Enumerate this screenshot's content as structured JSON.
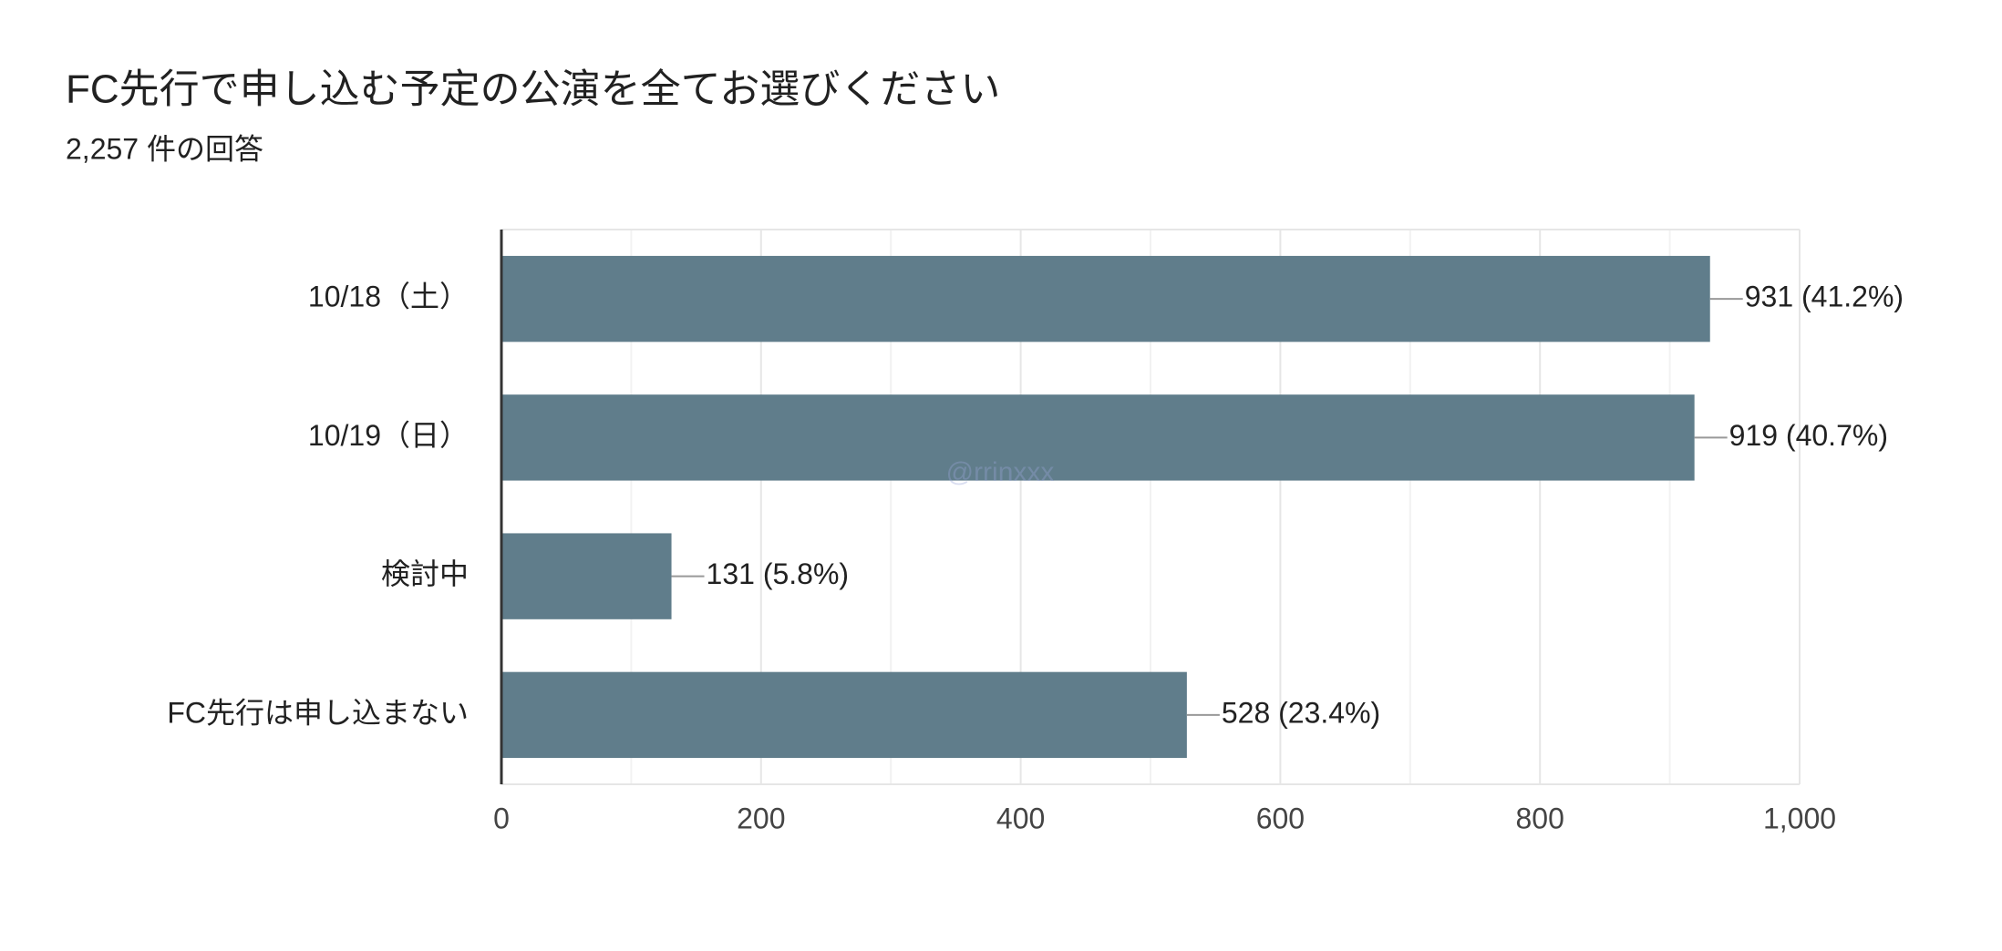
{
  "chart_data": {
    "type": "barh",
    "title": "FC先行で申し込む予定の公演を全てお選びください",
    "subtitle": "2,257 件の回答",
    "watermark": "@rrinxxx",
    "categories": [
      "10/18（土）",
      "10/19（日）",
      "検討中",
      "FC先行は申し込まない"
    ],
    "values": [
      931,
      919,
      131,
      528
    ],
    "value_labels": [
      "931 (41.2%)",
      "919 (40.7%)",
      "131 (5.8%)",
      "528 (23.4%)"
    ],
    "color": "#607d8b",
    "xlim": [
      0,
      1000
    ],
    "xticks": [
      0,
      200,
      400,
      600,
      800,
      {
        "value": 1000,
        "label": "1,000"
      }
    ],
    "x_minor_ticks": [
      100,
      300,
      500,
      700,
      900
    ],
    "grid": true
  }
}
